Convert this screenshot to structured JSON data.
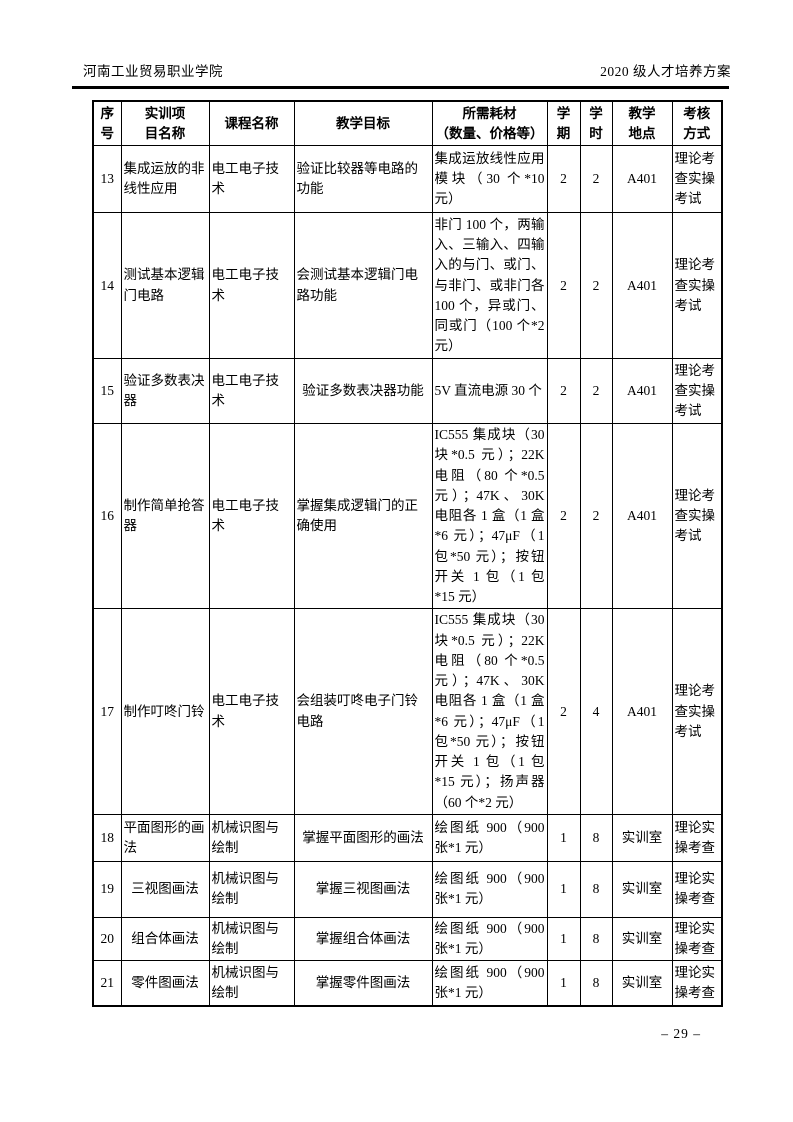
{
  "page": {
    "header": {
      "institution": "河南工业贸易职业学院",
      "plan_title": "2020 级人才培养方案"
    },
    "footer": {
      "page_number": "– 29 –"
    }
  },
  "table": {
    "columns": [
      "序\n号",
      "实训项\n目名称",
      "课程名称",
      "教学目标",
      "所需耗材\n（数量、价格等）",
      "学\n期",
      "学\n时",
      "教学\n地点",
      "考核\n方式"
    ],
    "rows": [
      {
        "serial": "13",
        "project": "集成运放的非线性应用",
        "course": "电工电子技术",
        "goal": "验证比较器等电路的功能",
        "materials": "集成运放线性应用模块（30 个*10 元）",
        "semester": "2",
        "hours": "2",
        "location": "A401",
        "assessment": "理论考查实操考试"
      },
      {
        "serial": "14",
        "project": "测试基本逻辑门电路",
        "course": "电工电子技术",
        "goal": "会测试基本逻辑门电路功能",
        "materials": "非门 100 个，两输入、三输入、四输入的与门、或门、与非门、或非门各 100 个，异或门、同或门（100 个*2 元）",
        "semester": "2",
        "hours": "2",
        "location": "A401",
        "assessment": "理论考查实操考试"
      },
      {
        "serial": "15",
        "project": "验证多数表决器",
        "course": "电工电子技术",
        "goal": "验证多数表决器功能",
        "materials": "5V 直流电源 30 个",
        "semester": "2",
        "hours": "2",
        "location": "A401",
        "assessment": "理论考查实操考试"
      },
      {
        "serial": "16",
        "project": "制作简单抢答器",
        "course": "电工电子技术",
        "goal": "掌握集成逻辑门的正确使用",
        "materials": "IC555 集成块（30 块*0.5 元）；22K 电阻（80 个*0.5 元）；47K、30K 电阻各 1 盒（1 盒*6 元）；47μF（1 包*50 元）；按钮开关 1 包（1 包*15 元）",
        "semester": "2",
        "hours": "2",
        "location": "A401",
        "assessment": "理论考查实操考试"
      },
      {
        "serial": "17",
        "project": "制作叮咚门铃",
        "course": "电工电子技术",
        "goal": "会组装叮咚电子门铃电路",
        "materials": "IC555 集成块（30 块*0.5 元）；22K 电阻（80 个*0.5 元）；47K、30K 电阻各 1 盒（1 盒*6 元）；47μF（1 包*50 元）；按钮开关 1 包（1 包*15 元）；扬声器（60 个*2 元）",
        "semester": "2",
        "hours": "4",
        "location": "A401",
        "assessment": "理论考查实操考试"
      },
      {
        "serial": "18",
        "project": "平面图形的画法",
        "course": "机械识图与绘制",
        "goal": "掌握平面图形的画法",
        "materials": "绘图纸 900（900 张*1 元）",
        "semester": "1",
        "hours": "8",
        "location": "实训室",
        "assessment": "理论实操考查"
      },
      {
        "serial": "19",
        "project": "三视图画法",
        "course": "机械识图与绘制",
        "goal": "掌握三视图画法",
        "materials": "绘图纸 900（900 张*1 元）",
        "semester": "1",
        "hours": "8",
        "location": "实训室",
        "assessment": "理论实操考查"
      },
      {
        "serial": "20",
        "project": "组合体画法",
        "course": "机械识图与绘制",
        "goal": "掌握组合体画法",
        "materials": "绘图纸 900（900 张*1 元）",
        "semester": "1",
        "hours": "8",
        "location": "实训室",
        "assessment": "理论实操考查"
      },
      {
        "serial": "21",
        "project": "零件图画法",
        "course": "机械识图与绘制",
        "goal": "掌握零件图画法",
        "materials": "绘图纸 900（900 张*1 元）",
        "semester": "1",
        "hours": "8",
        "location": "实训室",
        "assessment": "理论实操考查"
      }
    ]
  }
}
